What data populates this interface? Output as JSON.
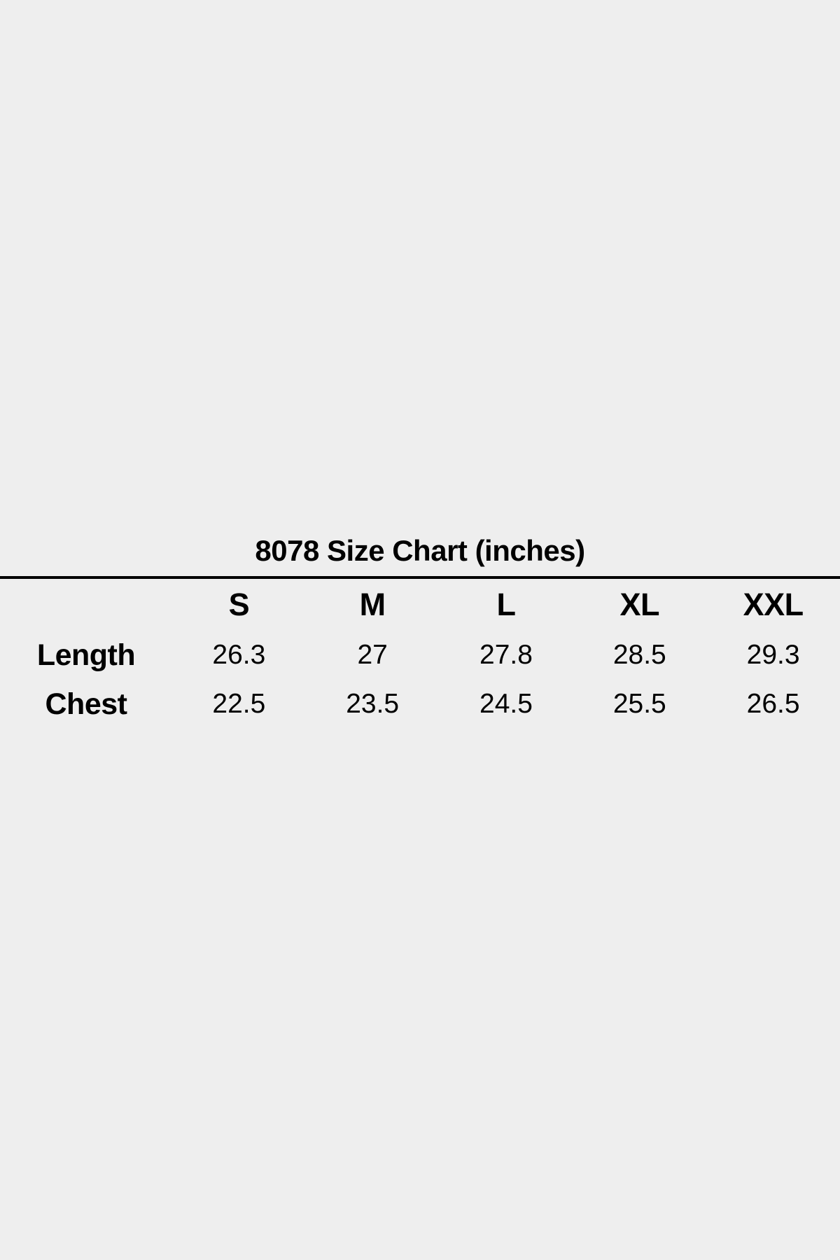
{
  "page": {
    "background_color": "#eeeeee",
    "text_color": "#000000",
    "divider_color": "#000000"
  },
  "size_chart": {
    "title": "8078 Size Chart (inches)",
    "columns": [
      "S",
      "M",
      "L",
      "XL",
      "XXL"
    ],
    "rows": [
      {
        "label": "Length",
        "values": [
          "26.3",
          "27",
          "27.8",
          "28.5",
          "29.3"
        ]
      },
      {
        "label": "Chest",
        "values": [
          "22.5",
          "23.5",
          "24.5",
          "25.5",
          "26.5"
        ]
      }
    ]
  },
  "chart_data": {
    "type": "table",
    "title": "8078 Size Chart (inches)",
    "units": "inches",
    "columns": [
      "S",
      "M",
      "L",
      "XL",
      "XXL"
    ],
    "rows": [
      {
        "label": "Length",
        "values": [
          26.3,
          27,
          27.8,
          28.5,
          29.3
        ]
      },
      {
        "label": "Chest",
        "values": [
          22.5,
          23.5,
          24.5,
          25.5,
          26.5
        ]
      }
    ]
  }
}
